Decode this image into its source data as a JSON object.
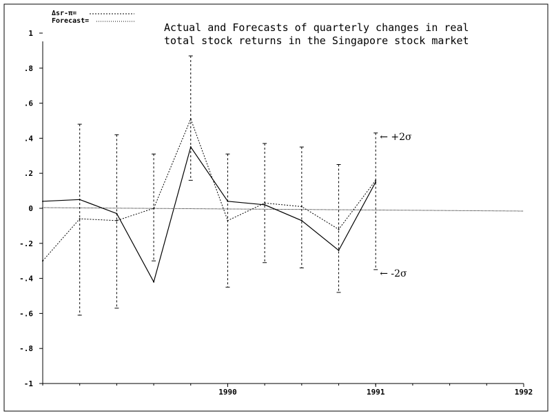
{
  "chart_data": {
    "type": "line",
    "title_lines": [
      "Actual and Forecasts of quarterly changes in real",
      "total stock returns in the Singapore stock market"
    ],
    "legend": [
      {
        "label": "Δsr-π=",
        "style": "solid"
      },
      {
        "label": "Forecast=",
        "style": "dotted"
      }
    ],
    "xlabel": "",
    "ylabel": "",
    "xlim": [
      1988.75,
      1992.0
    ],
    "ylim": [
      -1.0,
      1.0
    ],
    "x_ticks": [
      1990,
      1991,
      1992
    ],
    "x_tick_labels": [
      "1990",
      "1991",
      "1992"
    ],
    "y_ticks": [
      1,
      0.8,
      0.6,
      0.4,
      0.2,
      0,
      -0.2,
      -0.4,
      -0.6,
      -0.8,
      -1
    ],
    "y_tick_labels": [
      "1",
      ".8",
      ".6",
      ".4",
      ".2",
      "0",
      "-.2",
      "-.4",
      "-.6",
      "-.8",
      "-1"
    ],
    "grid": false,
    "zero_line": true,
    "series": [
      {
        "name": "Δsr-π",
        "style": "solid",
        "x": [
          1988.75,
          1989.0,
          1989.25,
          1989.5,
          1989.75,
          1990.0,
          1990.25,
          1990.5,
          1990.75,
          1991.0,
          1991.25
        ],
        "y": [
          0.04,
          0.05,
          -0.03,
          -0.42,
          0.35,
          0.04,
          0.02,
          -0.07,
          -0.24,
          0.15,
          null
        ]
      },
      {
        "name": "Forecast",
        "style": "dotted",
        "x": [
          1988.75,
          1989.0,
          1989.25,
          1989.5,
          1989.75,
          1990.0,
          1990.25,
          1990.5,
          1990.75,
          1991.0
        ],
        "y": [
          -0.3,
          -0.06,
          -0.07,
          0.0,
          0.51,
          -0.07,
          0.03,
          0.01,
          -0.12,
          0.16
        ]
      }
    ],
    "error_bars": {
      "x": [
        1989.0,
        1989.25,
        1989.5,
        1989.75,
        1990.0,
        1990.25,
        1990.5,
        1990.75,
        1991.0
      ],
      "upper": [
        0.48,
        0.42,
        0.31,
        0.87,
        0.31,
        0.37,
        0.35,
        0.25,
        0.43
      ],
      "lower": [
        -0.61,
        -0.57,
        -0.3,
        0.16,
        -0.45,
        -0.31,
        -0.34,
        -0.48,
        -0.35
      ]
    },
    "annotations": [
      {
        "text": "← +2σ",
        "x": 1991.0,
        "y": 0.41
      },
      {
        "text": "← -2σ",
        "x": 1991.0,
        "y": -0.37
      }
    ]
  }
}
